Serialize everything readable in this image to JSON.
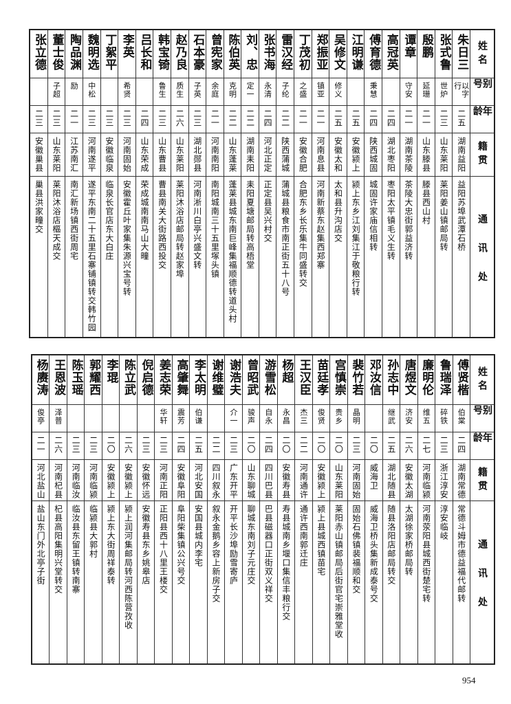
{
  "headers": {
    "name": "姓名",
    "alias": "别号",
    "age": "年龄",
    "native": "籍贯",
    "address": "通讯处"
  },
  "tables": [
    {
      "rows": [
        {
          "name": "朱日三",
          "alias": "以字行",
          "age": "二五",
          "native": "湖南益阳",
          "address": "益阳苏埠武潭石桥"
        },
        {
          "name": "张式鲁",
          "alias": "世炉",
          "age": "二三",
          "native": "山东莱阳",
          "address": "莱阳姜山镇邮局转"
        },
        {
          "name": "殷鹏",
          "alias": "延珊",
          "age": "二一",
          "native": "山东滕县",
          "address": "滕县西山村"
        },
        {
          "name": "谭章",
          "alias": "守安",
          "age": "二一",
          "native": "湖南茶陵",
          "address": "茶陵大忠街郭益济转"
        },
        {
          "name": "高冠英",
          "alias": "",
          "age": "二四",
          "native": "湖北枣阳",
          "address": "枣阳太平镇毛义生转"
        },
        {
          "name": "傅育德",
          "alias": "秉慧",
          "age": "二四",
          "native": "陕西城固",
          "address": "城固许家庙信相转"
        },
        {
          "name": "江明谦",
          "alias": "",
          "age": "二五",
          "native": "安徽颍上",
          "address": "颍上东乡江刘集江于敬粮行转"
        },
        {
          "name": "吴修文",
          "alias": "修义",
          "age": "二五",
          "native": "安徽太和",
          "address": "太和县升沟店交"
        },
        {
          "name": "郑振亚",
          "alias": "镇亚",
          "age": "二一",
          "native": "河南息县",
          "address": "河南新蔡东赵集西郑寨"
        },
        {
          "name": "丁茂初",
          "alias": "之盛",
          "age": "二一",
          "native": "安徽合肥",
          "address": "合肥东乡长乐集牛同盛转交"
        },
        {
          "name": "雷汉经",
          "alias": "子纶",
          "age": "二二",
          "native": "陕西蒲城",
          "address": "蒲城县粮食市南正街五十八号"
        },
        {
          "name": "张书海",
          "alias": "永清",
          "age": "二四",
          "native": "河北正定",
          "address": "正定县吴兴村交"
        },
        {
          "name": "刘、忠",
          "alias": "定一",
          "age": "二二",
          "native": "湖南耒阳",
          "address": "耒阳夏塘邮局转高梧堂"
        },
        {
          "name": "陈伯英",
          "alias": "克明",
          "age": "二二",
          "native": "山东蓬莱",
          "address": "蓬莱县城东南巨峰集福顺德转道头村"
        },
        {
          "name": "曾宪家",
          "alias": "余庭",
          "age": "二一",
          "native": "河南南阳",
          "address": "南阳城南三十五里塚头镇"
        },
        {
          "name": "石本豪",
          "alias": "子英",
          "age": "二三",
          "native": "湖北郧县",
          "address": "河南淅川白亭兴盛文转"
        },
        {
          "name": "赵乃良",
          "alias": "质生",
          "age": "二六",
          "native": "山东莱阳",
          "address": "莱阳沐浴店邮局转赵家埠"
        },
        {
          "name": "韩宝锜",
          "alias": "鲁生",
          "age": "二三",
          "native": "山东曹县",
          "address": "曹县南关大街路西投交"
        },
        {
          "name": "吕长和",
          "alias": "",
          "age": "二四",
          "native": "山东荣成",
          "address": "荣成城南南马山大疃"
        },
        {
          "name": "李英",
          "alias": "希贤",
          "age": "二三",
          "native": "河南固始",
          "address": "安徽霍丘叶家集朱源兴宝号转"
        },
        {
          "name": "丁絮平",
          "alias": "",
          "age": "二三",
          "native": "安徽临泉",
          "address": "临泉长官店东大白庄"
        },
        {
          "name": "魏明选",
          "alias": "中松",
          "age": "二三",
          "native": "河南遂平",
          "address": "遂平东南二十五里石寨铺镇转交韩竹园"
        },
        {
          "name": "陶品渊",
          "alias": "励",
          "age": "二一",
          "native": "江苏南汇",
          "address": "南汇新场镇西街周宅"
        },
        {
          "name": "董士俊",
          "alias": "子超",
          "age": "二三",
          "native": "山东莱阳",
          "address": "莱阳沐浴店樞天成交"
        },
        {
          "name": "张立德",
          "alias": "",
          "age": "二三",
          "native": "安徽巢县",
          "address": "巢县洪家疃交"
        }
      ]
    },
    {
      "rows": [
        {
          "name": "傅贤楷",
          "alias": "伯棠",
          "age": "二四",
          "native": "湖南常德",
          "address": "常德斗姆市德益福代邮转"
        },
        {
          "name": "鲁瑞泽",
          "alias": "碎铁",
          "age": "二三",
          "native": "浙江淳安",
          "address": "淳安临岐"
        },
        {
          "name": "廉明伦",
          "alias": "维五",
          "age": "二七",
          "native": "河南临颍",
          "address": "河南荥阳县城西街楚宅转"
        },
        {
          "name": "唐煜文",
          "alias": "济安",
          "age": "二六",
          "native": "安徽太湖",
          "address": "太湖徐家桥邮局转"
        },
        {
          "name": "孙志中",
          "alias": "继武",
          "age": "二五",
          "native": "湖北随县",
          "address": "随县洛阳店邮局转交"
        },
        {
          "name": "邓汝信",
          "alias": "",
          "age": "二〇",
          "native": "威海卫",
          "address": "威海卫桥头集新成泰号交"
        },
        {
          "name": "裴竹若",
          "alias": "晶明",
          "age": "二三",
          "native": "河南固始",
          "address": "固始石佛镇裴福顺和交"
        },
        {
          "name": "宫慎崇",
          "alias": "贵乡",
          "age": "二〇",
          "native": "山东莱阳",
          "address": "莱阳赤山镇邮局后街官宅崇雅堂收"
        },
        {
          "name": "苗廷孝",
          "alias": "俊贤",
          "age": "二〇",
          "native": "安徽颍上",
          "address": "颍上县城西镇苗宅"
        },
        {
          "name": "王汉臣",
          "alias": "杰三",
          "age": "二二",
          "native": "河南通许",
          "address": "通许西南郭迁庄"
        },
        {
          "name": "杨超",
          "alias": "永昌",
          "age": "二〇",
          "native": "安徽寿县",
          "address": "寿县城南乡堰口集信丰粮行交"
        },
        {
          "name": "游雪松",
          "alias": "自永",
          "age": "二四",
          "native": "四川巴县",
          "address": "巴县磁器口正街双义祥交"
        },
        {
          "name": "曾昭武",
          "alias": "骏声",
          "age": "二〇",
          "native": "山东聊城",
          "address": "聊城东南刘子元庄交"
        },
        {
          "name": "谢浩夫",
          "alias": "介一",
          "age": "二三",
          "native": "广东开平",
          "address": "开平长沙埠励雪寄庐"
        },
        {
          "name": "谢维璧",
          "alias": "",
          "age": "二二",
          "native": "四川叙永",
          "address": "叙永金鹅乡容上新房子交"
        },
        {
          "name": "李太明",
          "alias": "伯谦",
          "age": "二五",
          "native": "河北安国",
          "address": "安国县城内李宅"
        },
        {
          "name": "高肇舞",
          "alias": "震芳",
          "age": "二四",
          "native": "安徽阜阳",
          "address": "阜阳柴集镇公兴号交"
        },
        {
          "name": "姜志荣",
          "alias": "华轩",
          "age": "二三",
          "native": "河南正阳",
          "address": "正阳县西十八里王楼交"
        },
        {
          "name": "倪启德",
          "alias": "",
          "age": "二三",
          "native": "安徽怀远",
          "address": "安徽寿县东乡姚皋店"
        },
        {
          "name": "陈立武",
          "alias": "",
          "age": "二六",
          "native": "安徽颍上",
          "address": "颍上润河集邮局转河西陈营孜收"
        },
        {
          "name": "李琨",
          "alias": "",
          "age": "二〇",
          "native": "安徽颍上",
          "address": "颍上东大街周祥泰转"
        },
        {
          "name": "郭耀西",
          "alias": "",
          "age": "二三",
          "native": "河南临颍",
          "address": "临颍县大郭村"
        },
        {
          "name": "陈玉瑶",
          "alias": "",
          "age": "二三",
          "native": "河南临汝",
          "address": "临汝县东留王镇转南寨"
        },
        {
          "name": "王恩波",
          "alias": "泽普",
          "age": "二六",
          "native": "河南杞县",
          "address": "杞县高阳集明兴堂转交"
        },
        {
          "name": "杨赓涛",
          "alias": "俊亭",
          "age": "二一",
          "native": "河北盐山",
          "address": "盐山东门外北亭子街"
        }
      ]
    }
  ],
  "page_number": "954"
}
